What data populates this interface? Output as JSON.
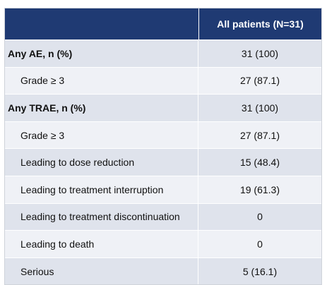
{
  "table": {
    "column_header": "All patients (N=31)",
    "rows": [
      {
        "label": "Any AE, n (%)",
        "value": "31 (100)"
      },
      {
        "label": "Grade ≥ 3",
        "value": "27 (87.1)"
      },
      {
        "label": "Any TRAE, n (%)",
        "value": "31 (100)"
      },
      {
        "label": "Grade ≥ 3",
        "value": "27 (87.1)"
      },
      {
        "label": "Leading to dose reduction",
        "value": "15 (48.4)"
      },
      {
        "label": "Leading to treatment interruption",
        "value": "19 (61.3)"
      },
      {
        "label": "Leading to treatment discontinuation",
        "value": "0"
      },
      {
        "label": "Leading to death",
        "value": "0"
      },
      {
        "label": "Serious",
        "value": "5 (16.1)"
      }
    ]
  },
  "colors": {
    "header_bg": "#1f3a73",
    "header_text": "#ffffff",
    "row_dark": "#dfe3ec",
    "row_light": "#eff1f6"
  }
}
